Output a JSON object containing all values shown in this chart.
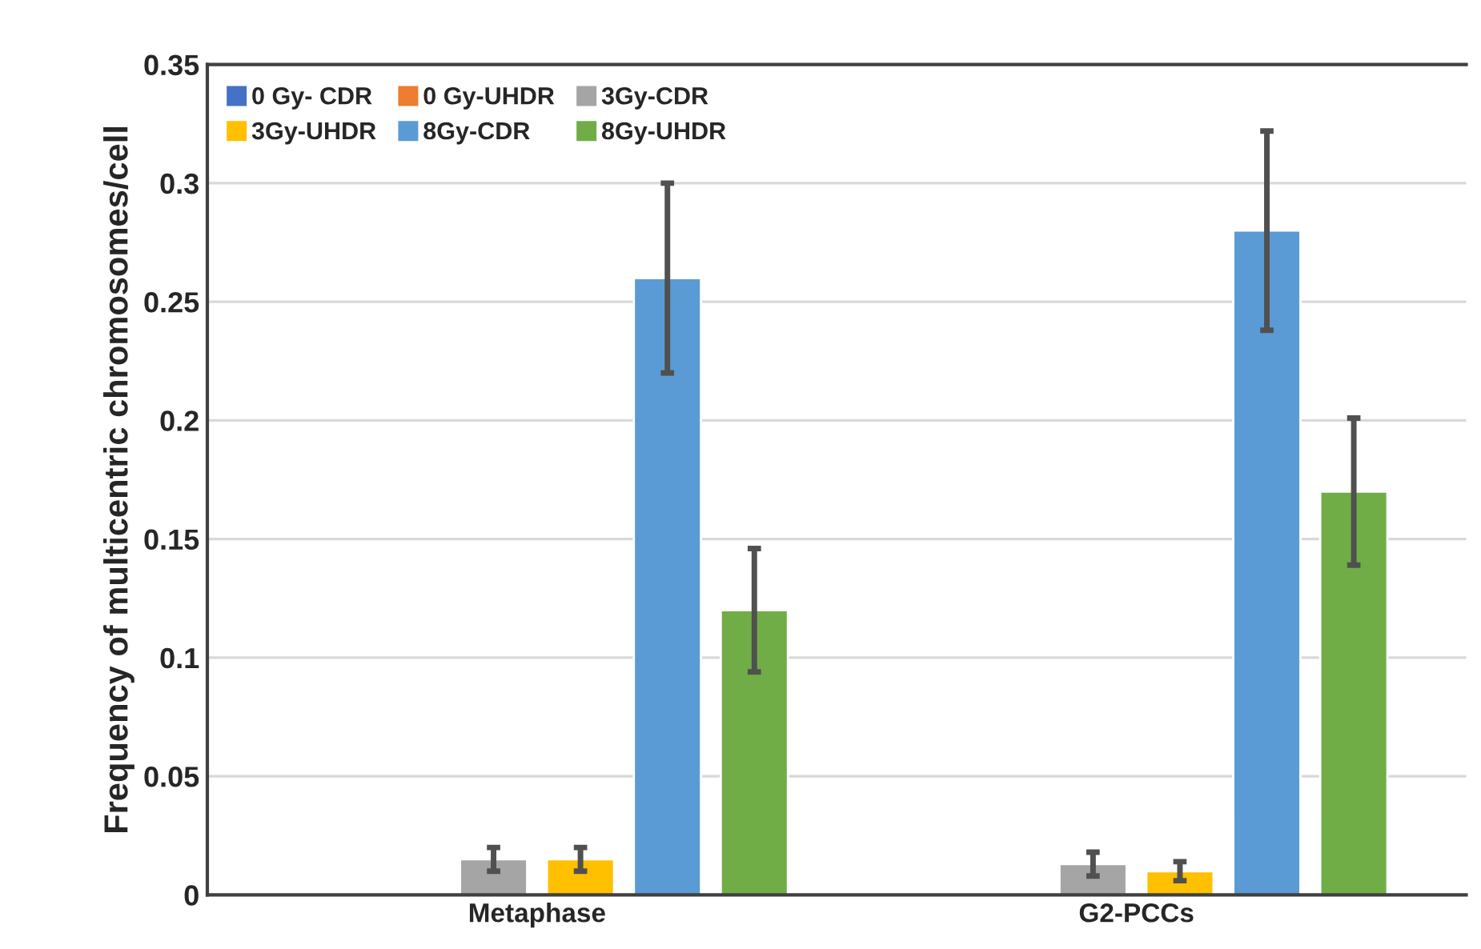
{
  "chart_data": {
    "type": "bar",
    "ylabel": "Frequency of multicentric chromosomes/cell",
    "categories": [
      "Metaphase",
      "G2-PCCs"
    ],
    "series": [
      {
        "name": "0 Gy- CDR",
        "color": "#4472c4",
        "values": [
          null,
          null
        ]
      },
      {
        "name": "0 Gy-UHDR",
        "color": "#ed7d31",
        "values": [
          null,
          null
        ]
      },
      {
        "name": "3Gy-CDR",
        "color": "#a5a5a5",
        "values": [
          0.015,
          0.013
        ],
        "errors": [
          0.005,
          0.005
        ]
      },
      {
        "name": "3Gy-UHDR",
        "color": "#ffc000",
        "values": [
          0.015,
          0.01
        ],
        "errors": [
          0.005,
          0.004
        ]
      },
      {
        "name": "8Gy-CDR",
        "color": "#5b9bd5",
        "values": [
          0.26,
          0.28
        ],
        "errors": [
          0.04,
          0.042
        ]
      },
      {
        "name": "8Gy-UHDR",
        "color": "#70ad47",
        "values": [
          0.12,
          0.17
        ],
        "errors": [
          0.026,
          0.031
        ]
      }
    ],
    "ylim": [
      0,
      0.35
    ],
    "yticks": [
      0,
      0.05,
      0.1,
      0.15,
      0.2,
      0.25,
      0.3,
      0.35
    ],
    "grid": "y",
    "legend": "top left"
  }
}
